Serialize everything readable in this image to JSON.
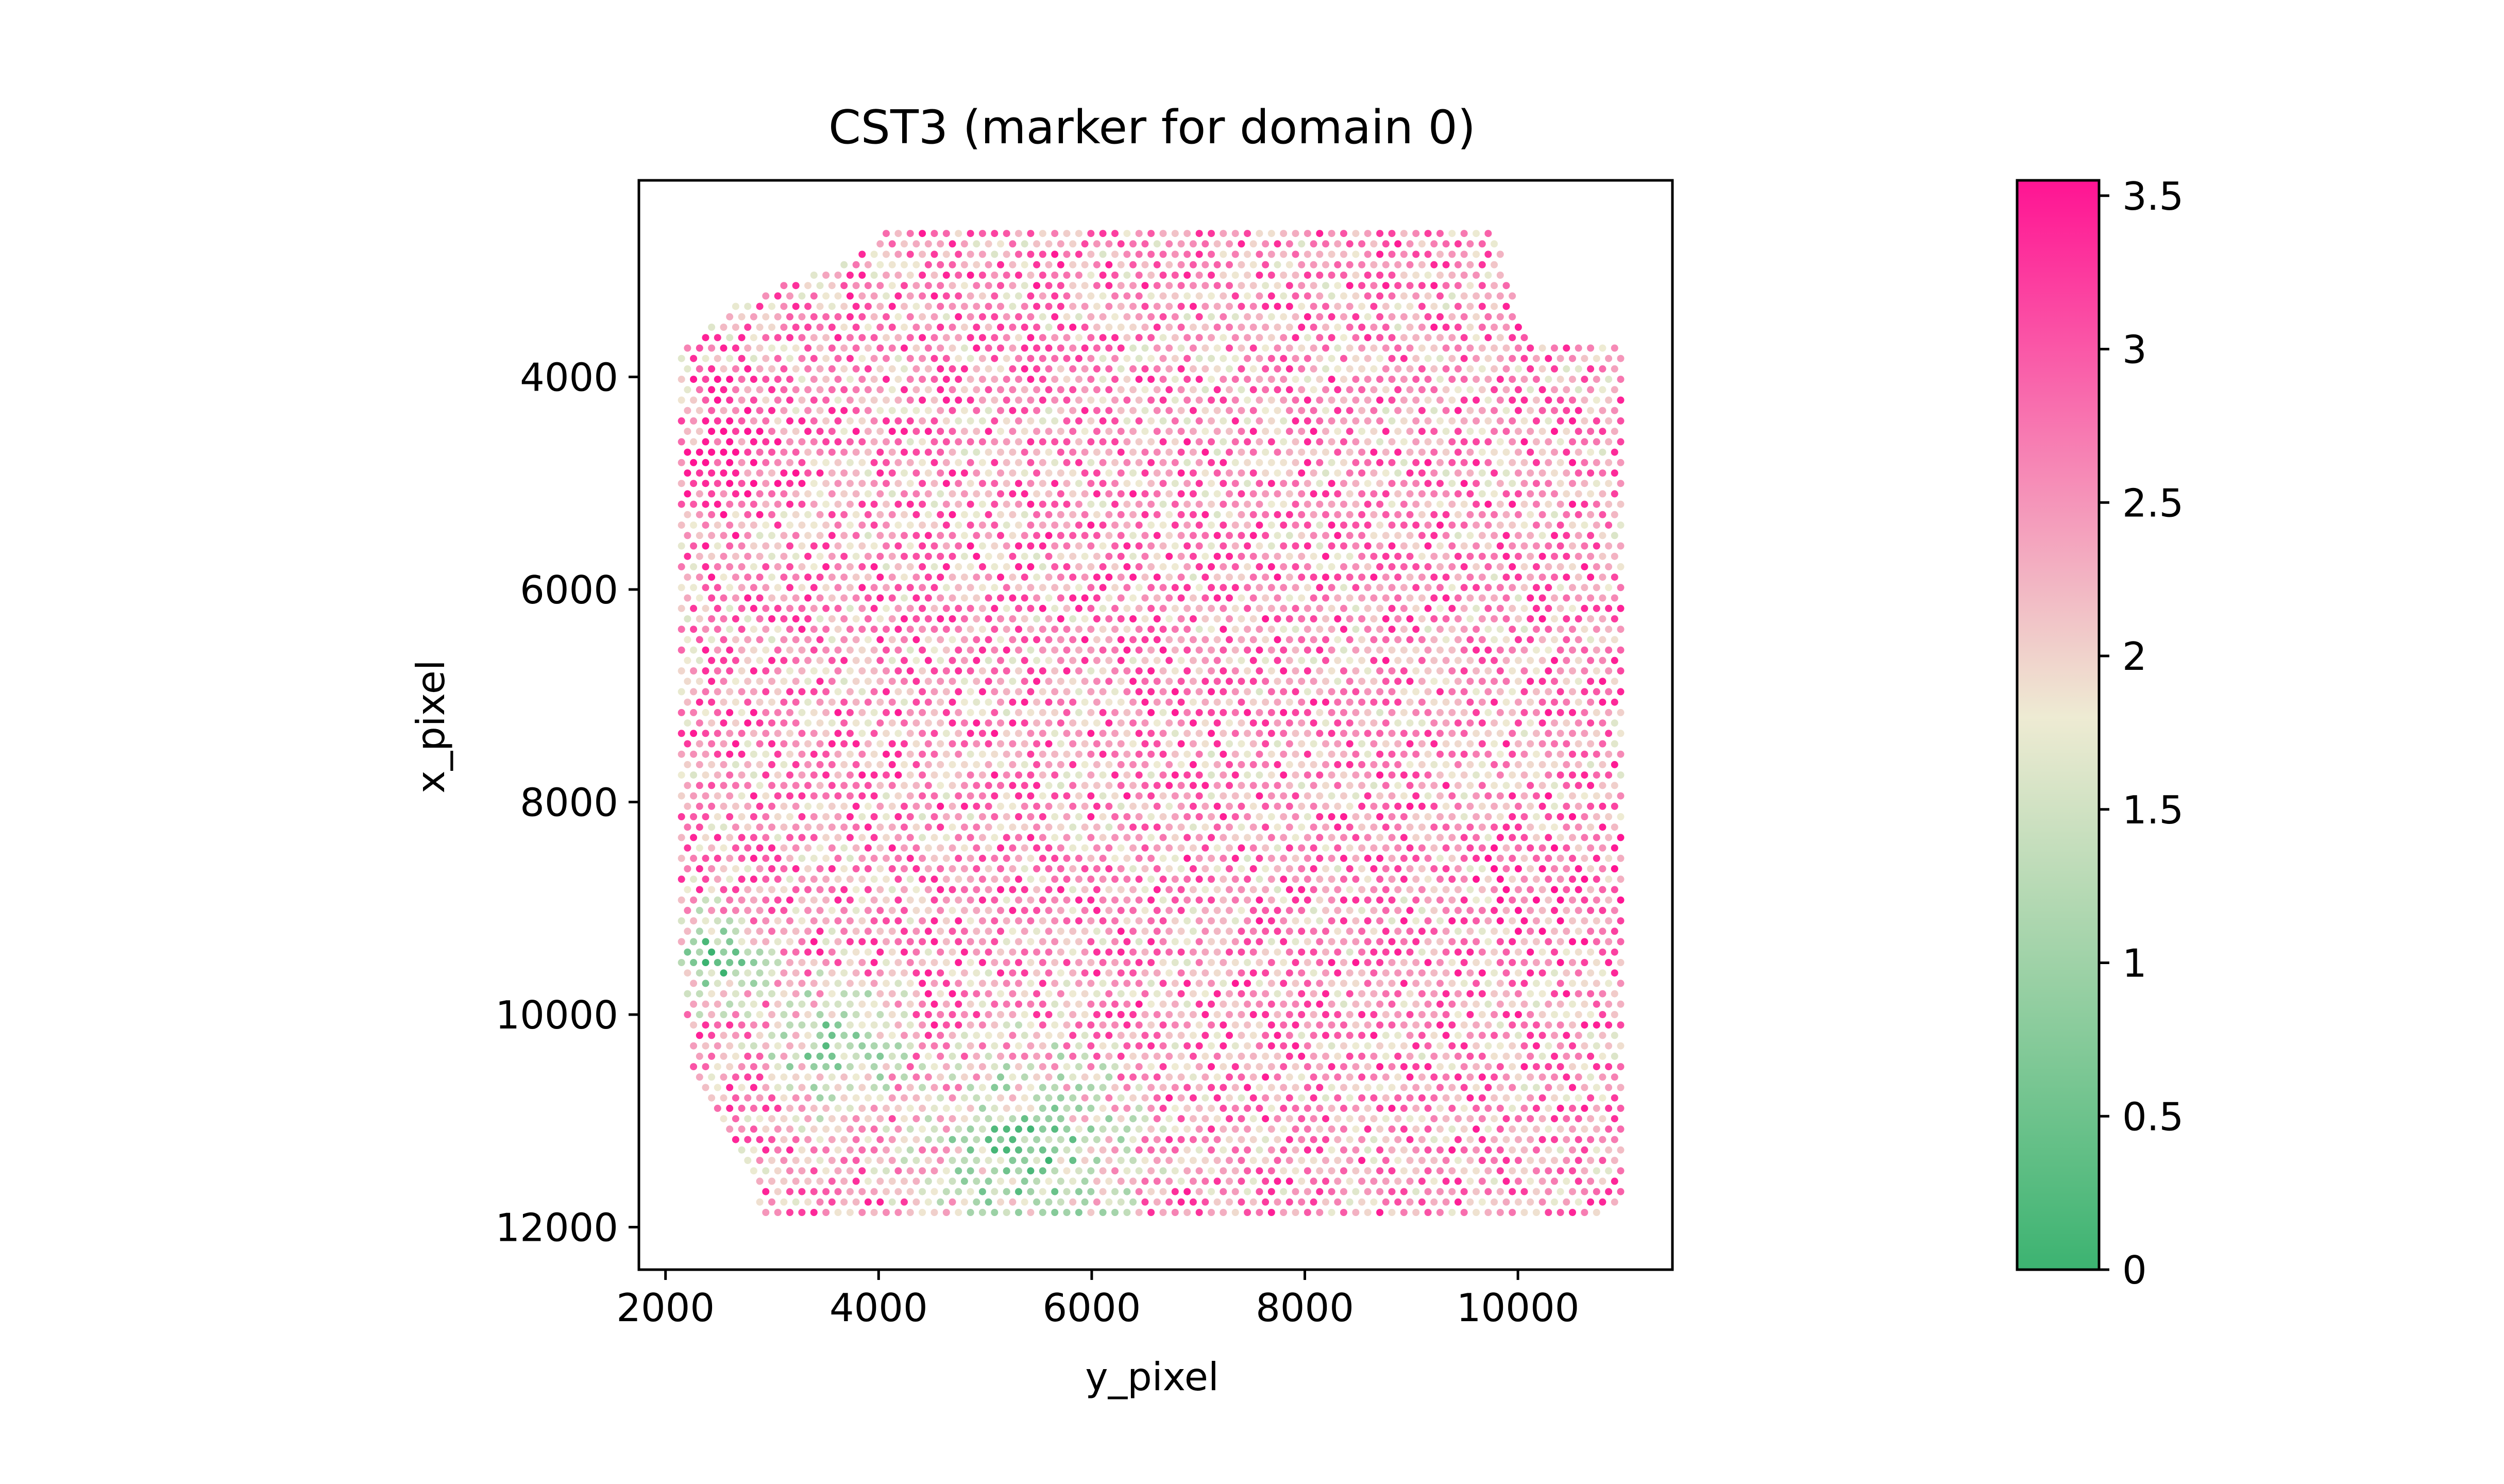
{
  "chart_data": {
    "type": "scatter",
    "title": "CST3 (marker for domain 0)",
    "xlabel": "y_pixel",
    "ylabel": "x_pixel",
    "xlim": [
      1750,
      11450
    ],
    "ylim": [
      12400,
      2150
    ],
    "y_inverted": true,
    "xticks": [
      2000,
      4000,
      6000,
      8000,
      10000
    ],
    "xtick_labels": [
      "2000",
      "4000",
      "6000",
      "8000",
      "10000"
    ],
    "yticks": [
      4000,
      6000,
      8000,
      10000,
      12000
    ],
    "ytick_labels": [
      "4000",
      "6000",
      "8000",
      "10000",
      "12000"
    ],
    "grid": false,
    "spot_grid": {
      "x_range": [
        2150,
        11020
      ],
      "y_range": [
        2650,
        11900
      ],
      "row_spacing": 98,
      "col_spacing": 113,
      "boundary_polygon": [
        [
          4000,
          2650
        ],
        [
          9800,
          2650
        ],
        [
          10100,
          3700
        ],
        [
          11020,
          3700
        ],
        [
          11020,
          11700
        ],
        [
          10800,
          11900
        ],
        [
          2950,
          11900
        ],
        [
          2250,
          10500
        ],
        [
          2150,
          9700
        ],
        [
          2150,
          3750
        ],
        [
          2700,
          3300
        ],
        [
          3800,
          2850
        ]
      ]
    },
    "expression_regions": [
      {
        "name": "green cluster left",
        "center": [
          2500,
          9500
        ],
        "radius": 650,
        "level": 0.3
      },
      {
        "name": "green band bottom",
        "center": [
          5400,
          11300
        ],
        "radius": 1400,
        "level": 0.6
      },
      {
        "name": "green band lower-left",
        "center": [
          3600,
          10300
        ],
        "radius": 900,
        "level": 0.8
      },
      {
        "name": "high spot upper-left",
        "center": [
          2600,
          4700
        ],
        "radius": 800,
        "level": 3.3
      },
      {
        "name": "high spot right",
        "center": [
          10400,
          8800
        ],
        "radius": 900,
        "level": 3.1
      }
    ],
    "baseline_level": 2.55,
    "colorbar": {
      "min": 0,
      "max": 3.55,
      "ticks": [
        0,
        0.5,
        1,
        1.5,
        2,
        2.5,
        3,
        3.5
      ],
      "tick_labels": [
        "0",
        "0.5",
        "1",
        "1.5",
        "2",
        "2.5",
        "3",
        "3.5"
      ],
      "colors": [
        {
          "value": 0,
          "color": "#3cb371"
        },
        {
          "value": 1.8,
          "color": "#eeebd3"
        },
        {
          "value": 3.55,
          "color": "#ff1493"
        }
      ]
    }
  }
}
